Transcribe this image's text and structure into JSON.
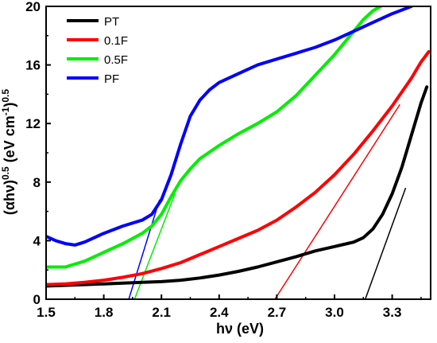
{
  "chart_data": {
    "type": "line",
    "xlabel": "hν (eV)",
    "ylabel": "(αhν)0.5 (eV cm-1)0.5",
    "ylabel_parts": {
      "base": "(αhν)",
      "sup1": "0.5",
      "unit_open": "(eV cm",
      "sup2": "-1",
      "unit_close": ")",
      "sup3": "0.5"
    },
    "xlim": [
      1.5,
      3.5
    ],
    "ylim": [
      0,
      20
    ],
    "xticks": [
      1.5,
      1.8,
      2.1,
      2.4,
      2.7,
      3.0,
      3.3
    ],
    "xtick_labels": [
      "1.5",
      "1.8",
      "2.1",
      "2.4",
      "2.7",
      "3.0",
      "3.3"
    ],
    "yticks": [
      0,
      4,
      8,
      12,
      16,
      20
    ],
    "ytick_labels": [
      "0",
      "4",
      "8",
      "12",
      "16",
      "20"
    ],
    "grid": false,
    "legend_position": "top-left",
    "series": [
      {
        "name": "PT",
        "color": "#000000",
        "x": [
          1.5,
          1.6,
          1.7,
          1.8,
          1.9,
          2.0,
          2.1,
          2.2,
          2.3,
          2.4,
          2.5,
          2.6,
          2.7,
          2.8,
          2.9,
          3.0,
          3.05,
          3.1,
          3.15,
          3.2,
          3.25,
          3.3,
          3.35,
          3.4,
          3.45,
          3.48
        ],
        "y": [
          0.9,
          0.95,
          1.0,
          1.05,
          1.1,
          1.15,
          1.2,
          1.3,
          1.45,
          1.65,
          1.9,
          2.2,
          2.55,
          2.9,
          3.3,
          3.6,
          3.75,
          3.9,
          4.2,
          4.8,
          5.8,
          7.2,
          9.0,
          11.2,
          13.4,
          14.5
        ],
        "tangent": {
          "x": [
            3.16,
            3.37
          ],
          "y": [
            0,
            7.6
          ]
        }
      },
      {
        "name": "0.1F",
        "color": "#ff0000",
        "x": [
          1.5,
          1.6,
          1.7,
          1.8,
          1.9,
          2.0,
          2.1,
          2.2,
          2.3,
          2.4,
          2.5,
          2.6,
          2.7,
          2.8,
          2.9,
          3.0,
          3.1,
          3.2,
          3.3,
          3.4,
          3.45,
          3.49
        ],
        "y": [
          1.0,
          1.05,
          1.15,
          1.3,
          1.5,
          1.75,
          2.1,
          2.5,
          3.05,
          3.6,
          4.15,
          4.7,
          5.4,
          6.3,
          7.3,
          8.5,
          9.9,
          11.5,
          13.2,
          15.1,
          16.2,
          16.9
        ],
        "tangent": {
          "x": [
            2.69,
            3.34
          ],
          "y": [
            0,
            13.3
          ]
        }
      },
      {
        "name": "0.5F",
        "color": "#00ee00",
        "x": [
          1.5,
          1.6,
          1.7,
          1.8,
          1.9,
          2.0,
          2.05,
          2.1,
          2.15,
          2.2,
          2.25,
          2.3,
          2.4,
          2.5,
          2.6,
          2.7,
          2.8,
          2.9,
          3.0,
          3.1,
          3.15,
          3.2,
          3.24
        ],
        "y": [
          2.2,
          2.2,
          2.6,
          3.2,
          3.8,
          4.5,
          5.0,
          5.8,
          7.0,
          8.1,
          8.9,
          9.6,
          10.5,
          11.3,
          12.0,
          12.8,
          13.9,
          15.3,
          16.7,
          18.3,
          19.1,
          19.7,
          20.0
        ]
      },
      {
        "name": "PF",
        "color": "#0000ff",
        "x": [
          1.5,
          1.55,
          1.6,
          1.65,
          1.7,
          1.8,
          1.9,
          2.0,
          2.05,
          2.1,
          2.15,
          2.2,
          2.25,
          2.3,
          2.35,
          2.4,
          2.5,
          2.6,
          2.7,
          2.8,
          2.9,
          3.0,
          3.1,
          3.2,
          3.3,
          3.4
        ],
        "y": [
          4.3,
          4.0,
          3.8,
          3.7,
          3.9,
          4.5,
          5.0,
          5.4,
          5.8,
          6.8,
          8.5,
          10.6,
          12.5,
          13.6,
          14.3,
          14.8,
          15.4,
          16.0,
          16.4,
          16.8,
          17.2,
          17.7,
          18.3,
          18.9,
          19.5,
          20.0
        ]
      }
    ],
    "extra_tangents": [
      {
        "color": "#0000ff",
        "x": [
          1.93,
          2.09
        ],
        "y": [
          0,
          6.8
        ]
      },
      {
        "color": "#00ee00",
        "x": [
          1.96,
          2.17
        ],
        "y": [
          0,
          7.2
        ]
      }
    ]
  }
}
